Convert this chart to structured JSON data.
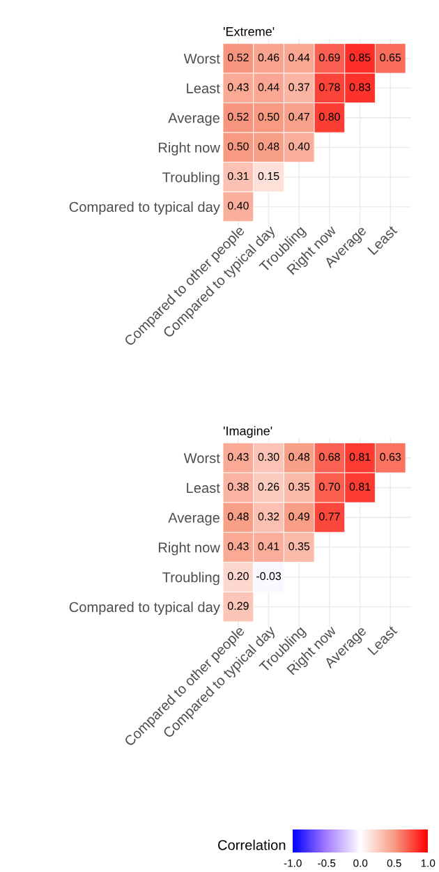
{
  "chart_data": [
    {
      "type": "heatmap",
      "title": "'Extreme'",
      "grid": true,
      "colors": [
        "#0000ff",
        "#a67dff",
        "#ffffff",
        "#f89c84",
        "#ff0000"
      ],
      "categories": [
        "Compared to other people",
        "Compared to typical day",
        "Troubling",
        "Right now",
        "Average",
        "Least"
      ],
      "y_categories": [
        "Worst",
        "Least",
        "Average",
        "Right now",
        "Troubling",
        "Compared to typical day"
      ],
      "cells": [
        [
          0.52,
          0.46,
          0.44,
          0.69,
          0.85,
          0.65
        ],
        [
          0.43,
          0.44,
          0.37,
          0.78,
          0.83,
          null
        ],
        [
          0.52,
          0.5,
          0.47,
          0.8,
          null,
          null
        ],
        [
          0.5,
          0.48,
          0.4,
          null,
          null,
          null
        ],
        [
          0.31,
          0.15,
          null,
          null,
          null,
          null
        ],
        [
          0.4,
          null,
          null,
          null,
          null,
          null
        ]
      ],
      "cell_labels": [
        [
          "0.52",
          "0.46",
          "0.44",
          "0.69",
          "0.85",
          "0.65"
        ],
        [
          "0.43",
          "0.44",
          "0.37",
          "0.78",
          "0.83",
          null
        ],
        [
          "0.52",
          "0.50",
          "0.47",
          "0.80",
          null,
          null
        ],
        [
          "0.50",
          "0.48",
          "0.40",
          null,
          null,
          null
        ],
        [
          "0.31",
          "0.15",
          null,
          null,
          null,
          null
        ],
        [
          "0.40",
          null,
          null,
          null,
          null,
          null
        ]
      ]
    },
    {
      "type": "heatmap",
      "title": "'Imagine'",
      "grid": true,
      "clim": [
        -1,
        1
      ],
      "colors": [
        "#0000ff",
        "#a67dff",
        "#ffffff",
        "#f89c84",
        "#ff0000"
      ],
      "clabel": "Correlation",
      "cticks": [
        {
          "value": -1,
          "label": "-1.0"
        },
        {
          "value": -0.5,
          "label": "-0.5"
        },
        {
          "value": 0,
          "label": "0.0"
        },
        {
          "value": 0.5,
          "label": "0.5"
        },
        {
          "value": 1,
          "label": "1.0"
        }
      ],
      "categories": [
        "Compared to other people",
        "Compared to typical day",
        "Troubling",
        "Right now",
        "Average",
        "Least"
      ],
      "y_categories": [
        "Worst",
        "Least",
        "Average",
        "Right now",
        "Troubling",
        "Compared to typical day"
      ],
      "cells": [
        [
          0.43,
          0.3,
          0.48,
          0.68,
          0.81,
          0.63
        ],
        [
          0.38,
          0.26,
          0.35,
          0.7,
          0.81,
          null
        ],
        [
          0.48,
          0.32,
          0.49,
          0.77,
          null,
          null
        ],
        [
          0.43,
          0.41,
          0.35,
          null,
          null,
          null
        ],
        [
          0.2,
          -0.03,
          null,
          null,
          null,
          null
        ],
        [
          0.29,
          null,
          null,
          null,
          null,
          null
        ]
      ],
      "cell_labels": [
        [
          "0.43",
          "0.30",
          "0.48",
          "0.68",
          "0.81",
          "0.63"
        ],
        [
          "0.38",
          "0.26",
          "0.35",
          "0.70",
          "0.81",
          null
        ],
        [
          "0.48",
          "0.32",
          "0.49",
          "0.77",
          null,
          null
        ],
        [
          "0.43",
          "0.41",
          "0.35",
          null,
          null,
          null
        ],
        [
          "0.20",
          "-0.03",
          null,
          null,
          null,
          null
        ],
        [
          "0.29",
          null,
          null,
          null,
          null,
          null
        ]
      ]
    }
  ]
}
